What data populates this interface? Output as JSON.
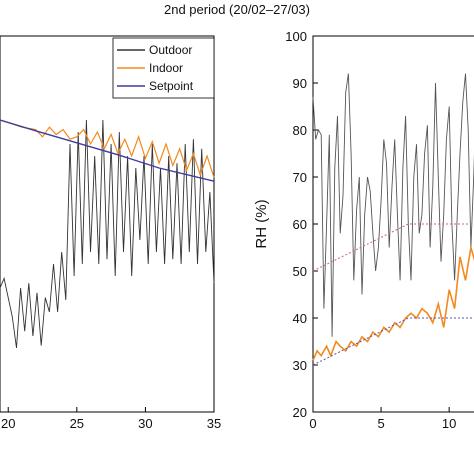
{
  "page": {
    "title": "2nd period (20/02–27/03)"
  },
  "chart_data": [
    {
      "type": "line",
      "title": "",
      "xlabel": "",
      "ylabel": "",
      "xlim": [
        19.4,
        35
      ],
      "x_ticks": [
        "20",
        "25",
        "30",
        "35"
      ],
      "x_tick_values": [
        20,
        25,
        30,
        35
      ],
      "y_tick_values": [],
      "y_scale": "relative",
      "legend": {
        "placement": "top-right",
        "entries": [
          "Outdoor",
          "Indoor",
          "Setpoint"
        ]
      },
      "series": [
        {
          "name": "Outdoor",
          "color": "#333333",
          "x": [
            19.4,
            19.7,
            20.0,
            20.3,
            20.6,
            20.9,
            21.2,
            21.5,
            21.8,
            22.1,
            22.4,
            22.7,
            23.0,
            23.3,
            23.6,
            23.9,
            24.2,
            24.5,
            24.8,
            25.1,
            25.4,
            25.7,
            26.0,
            26.3,
            26.6,
            26.9,
            27.2,
            27.5,
            27.8,
            28.1,
            28.4,
            28.7,
            29.0,
            29.3,
            29.6,
            29.9,
            30.2,
            30.5,
            30.8,
            31.1,
            31.4,
            31.7,
            32.0,
            32.3,
            32.6,
            32.9,
            33.2,
            33.5,
            33.8,
            34.1,
            34.4,
            34.7,
            35.0
          ],
          "y": [
            0.3,
            0.34,
            0.26,
            0.18,
            0.05,
            0.3,
            0.12,
            0.32,
            0.1,
            0.28,
            0.06,
            0.26,
            0.2,
            0.4,
            0.2,
            0.45,
            0.25,
            0.9,
            0.35,
            0.95,
            0.4,
            1.0,
            0.45,
            0.85,
            0.4,
            1.0,
            0.42,
            0.9,
            0.35,
            0.95,
            0.45,
            0.85,
            0.35,
            0.8,
            0.5,
            0.85,
            0.4,
            0.9,
            0.45,
            0.8,
            0.4,
            0.85,
            0.42,
            0.82,
            0.4,
            0.9,
            0.45,
            0.92,
            0.4,
            0.88,
            0.45,
            0.7,
            0.32
          ]
        },
        {
          "name": "Indoor",
          "color": "#f28a1e",
          "x": [
            19.4,
            20.0,
            21.0,
            22.0,
            22.5,
            23.0,
            23.5,
            24.0,
            24.5,
            25.0,
            25.5,
            26.0,
            26.5,
            27.0,
            27.5,
            28.0,
            28.5,
            29.0,
            29.5,
            30.0,
            30.5,
            31.0,
            31.5,
            32.0,
            32.5,
            33.0,
            33.5,
            34.0,
            34.5,
            35.0
          ],
          "y": [
            1.0,
            0.99,
            0.97,
            0.96,
            0.93,
            0.97,
            0.94,
            0.96,
            0.92,
            0.93,
            0.96,
            0.9,
            0.95,
            0.88,
            0.94,
            0.86,
            0.92,
            0.85,
            0.93,
            0.84,
            0.91,
            0.82,
            0.9,
            0.81,
            0.88,
            0.79,
            0.86,
            0.77,
            0.85,
            0.76
          ]
        },
        {
          "name": "Setpoint",
          "color": "#3d3d9e",
          "x": [
            19.4,
            22.0,
            25.0,
            28.0,
            31.0,
            35.0
          ],
          "y": [
            1.0,
            0.955,
            0.905,
            0.855,
            0.8,
            0.745
          ]
        }
      ]
    },
    {
      "type": "line",
      "title": "",
      "xlabel": "",
      "ylabel": "RH (%)",
      "xlim": [
        0,
        13
      ],
      "ylim": [
        20,
        100
      ],
      "x_ticks": [
        "0",
        "5",
        "10"
      ],
      "x_tick_values": [
        0,
        5,
        10
      ],
      "y_ticks": [
        "20",
        "30",
        "40",
        "50",
        "60",
        "70",
        "80",
        "90",
        "100"
      ],
      "y_tick_values": [
        20,
        30,
        40,
        50,
        60,
        70,
        80,
        90,
        100
      ],
      "series": [
        {
          "color": "#555555",
          "x": [
            0.0,
            0.2,
            0.4,
            0.6,
            0.8,
            1.0,
            1.2,
            1.4,
            1.6,
            1.8,
            2.0,
            2.2,
            2.4,
            2.6,
            2.8,
            3.0,
            3.2,
            3.4,
            3.6,
            3.8,
            4.0,
            4.2,
            4.4,
            4.6,
            4.8,
            5.0,
            5.2,
            5.4,
            5.6,
            5.8,
            6.0,
            6.2,
            6.4,
            6.6,
            6.8,
            7.0,
            7.2,
            7.4,
            7.6,
            7.8,
            8.0,
            8.2,
            8.4,
            8.6,
            8.8,
            9.0,
            9.2,
            9.4,
            9.6,
            9.8,
            10.0,
            10.2,
            10.4,
            10.6,
            10.8,
            11.0,
            11.2,
            11.4,
            11.6,
            11.8,
            12.0,
            12.2,
            12.4,
            12.6,
            12.8,
            13.0
          ],
          "y": [
            87,
            78,
            80,
            79,
            42,
            60,
            79,
            36,
            72,
            83,
            58,
            66,
            88,
            92,
            75,
            48,
            63,
            70,
            45,
            62,
            70,
            67,
            58,
            50,
            55,
            65,
            78,
            73,
            55,
            68,
            78,
            62,
            48,
            72,
            83,
            60,
            48,
            70,
            77,
            58,
            62,
            75,
            81,
            55,
            68,
            90,
            70,
            52,
            62,
            78,
            85,
            60,
            48,
            62,
            75,
            86,
            92,
            80,
            55,
            70,
            88,
            73,
            58,
            62,
            55,
            60
          ]
        },
        {
          "color": "#f28a1e",
          "x": [
            0.0,
            0.3,
            0.6,
            1.0,
            1.3,
            1.7,
            2.0,
            2.4,
            2.8,
            3.2,
            3.6,
            4.0,
            4.4,
            4.8,
            5.2,
            5.6,
            6.0,
            6.4,
            6.8,
            7.2,
            7.6,
            8.0,
            8.4,
            8.8,
            9.2,
            9.6,
            10.0,
            10.4,
            10.8,
            11.2,
            11.6,
            12.0,
            12.4,
            12.8,
            13.0
          ],
          "y": [
            31,
            33,
            32,
            34,
            32,
            35,
            34,
            33,
            35,
            34,
            36,
            35,
            37,
            36,
            38,
            37,
            39,
            38,
            40,
            41,
            40,
            42,
            41,
            39,
            43,
            38,
            46,
            42,
            53,
            48,
            55,
            51,
            57,
            54,
            56
          ]
        },
        {
          "color": "#c0609a",
          "x": [
            0.0,
            7.0,
            13.0
          ],
          "y": [
            50,
            60,
            60
          ]
        },
        {
          "color": "#5a50b0",
          "x": [
            0.0,
            7.0,
            13.0
          ],
          "y": [
            30,
            40,
            40
          ]
        }
      ]
    }
  ]
}
